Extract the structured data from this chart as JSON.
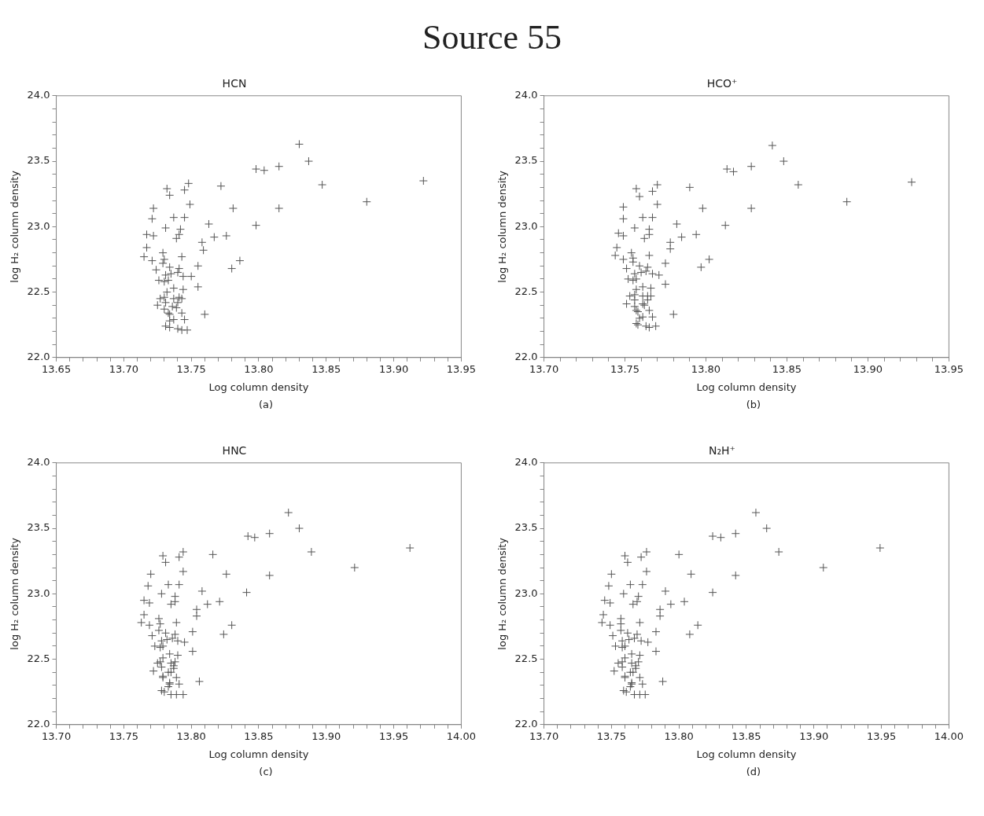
{
  "chart_data": [
    {
      "type": "scatter",
      "title": "HCN",
      "xlabel": "Log column density",
      "ylabel": "log H₂ column density",
      "annotations": [
        "Source 55",
        "(a)"
      ],
      "color": "#555555",
      "marker": "cross",
      "grid": false,
      "legend": false,
      "xlim": [
        13.65,
        13.95
      ],
      "ylim": [
        22,
        24
      ],
      "xticks": [
        {
          "value": 13.65,
          "label": "13.65"
        },
        {
          "value": 13.66,
          "label": null
        },
        {
          "value": 13.67,
          "label": null
        },
        {
          "value": 13.68,
          "label": null
        },
        {
          "value": 13.69,
          "label": null
        },
        {
          "value": 13.7,
          "label": "13.70"
        },
        {
          "value": 13.71,
          "label": null
        },
        {
          "value": 13.72,
          "label": null
        },
        {
          "value": 13.73,
          "label": null
        },
        {
          "value": 13.74,
          "label": null
        },
        {
          "value": 13.75,
          "label": "13.75"
        },
        {
          "value": 13.76,
          "label": null
        },
        {
          "value": 13.77,
          "label": null
        },
        {
          "value": 13.78,
          "label": null
        },
        {
          "value": 13.79,
          "label": null
        },
        {
          "value": 13.8,
          "label": "13.80"
        },
        {
          "value": 13.81,
          "label": null
        },
        {
          "value": 13.82,
          "label": null
        },
        {
          "value": 13.83,
          "label": null
        },
        {
          "value": 13.84,
          "label": null
        },
        {
          "value": 13.85,
          "label": "13.85"
        },
        {
          "value": 13.86,
          "label": null
        },
        {
          "value": 13.87,
          "label": null
        },
        {
          "value": 13.88,
          "label": null
        },
        {
          "value": 13.89,
          "label": null
        },
        {
          "value": 13.9,
          "label": "13.90"
        },
        {
          "value": 13.91,
          "label": null
        },
        {
          "value": 13.92,
          "label": null
        },
        {
          "value": 13.93,
          "label": null
        },
        {
          "value": 13.94,
          "label": null
        },
        {
          "value": 13.95,
          "label": "13.95"
        }
      ],
      "yticks": [
        {
          "value": 22,
          "label": "22.0"
        },
        {
          "value": 22.1,
          "label": null
        },
        {
          "value": 22.2,
          "label": null
        },
        {
          "value": 22.3,
          "label": null
        },
        {
          "value": 22.4,
          "label": null
        },
        {
          "value": 22.5,
          "label": "22.5"
        },
        {
          "value": 22.6,
          "label": null
        },
        {
          "value": 22.7,
          "label": null
        },
        {
          "value": 22.8,
          "label": null
        },
        {
          "value": 22.9,
          "label": null
        },
        {
          "value": 23,
          "label": "23.0"
        },
        {
          "value": 23.1,
          "label": null
        },
        {
          "value": 23.2,
          "label": null
        },
        {
          "value": 23.3,
          "label": null
        },
        {
          "value": 23.4,
          "label": null
        },
        {
          "value": 23.5,
          "label": "23.5"
        },
        {
          "value": 23.6,
          "label": null
        },
        {
          "value": 23.7,
          "label": null
        },
        {
          "value": 23.8,
          "label": null
        },
        {
          "value": 23.9,
          "label": null
        },
        {
          "value": 24,
          "label": "24.0"
        }
      ],
      "x": [
        13.83,
        13.837,
        13.815,
        13.798,
        13.804,
        13.847,
        13.922,
        13.88,
        13.815,
        13.798,
        13.781,
        13.772,
        13.748,
        13.732,
        13.745,
        13.734,
        13.749,
        13.722,
        13.721,
        13.737,
        13.745,
        13.763,
        13.731,
        13.742,
        13.717,
        13.722,
        13.741,
        13.739,
        13.767,
        13.776,
        13.758,
        13.759,
        13.717,
        13.715,
        13.721,
        13.729,
        13.73,
        13.743,
        13.786,
        13.78,
        13.755,
        13.729,
        13.734,
        13.724,
        13.741,
        13.731,
        13.735,
        13.74,
        13.744,
        13.75,
        13.726,
        13.73,
        13.733,
        13.755,
        13.737,
        13.744,
        13.732,
        13.727,
        13.73,
        13.737,
        13.741,
        13.743,
        13.731,
        13.74,
        13.725,
        13.736,
        13.739,
        13.73,
        13.733,
        13.743,
        13.734,
        13.76,
        13.737,
        13.745,
        13.734,
        13.731,
        13.734,
        13.74,
        13.743,
        13.747
      ],
      "values": [
        23.63,
        23.5,
        23.46,
        23.44,
        23.43,
        23.32,
        23.35,
        23.19,
        23.14,
        23.01,
        23.14,
        23.31,
        23.33,
        23.29,
        23.28,
        23.24,
        23.17,
        23.14,
        23.06,
        23.07,
        23.07,
        23.02,
        22.99,
        22.98,
        22.94,
        22.93,
        22.94,
        22.91,
        22.92,
        22.93,
        22.88,
        22.82,
        22.84,
        22.77,
        22.74,
        22.8,
        22.75,
        22.77,
        22.74,
        22.68,
        22.7,
        22.72,
        22.69,
        22.67,
        22.68,
        22.63,
        22.64,
        22.65,
        22.62,
        22.62,
        22.59,
        22.58,
        22.59,
        22.54,
        22.53,
        22.52,
        22.5,
        22.45,
        22.46,
        22.45,
        22.46,
        22.45,
        22.42,
        22.42,
        22.4,
        22.39,
        22.38,
        22.37,
        22.34,
        22.34,
        22.33,
        22.33,
        22.29,
        22.29,
        22.28,
        22.24,
        22.23,
        22.22,
        22.21,
        22.21
      ]
    },
    {
      "type": "scatter",
      "title": "HCO⁺",
      "xlabel": "Log column density",
      "ylabel": "log H₂ column density",
      "annotations": [
        "(b)"
      ],
      "color": "#555555",
      "marker": "cross",
      "grid": false,
      "legend": false,
      "xlim": [
        13.7,
        13.95
      ],
      "ylim": [
        22,
        24
      ],
      "xticks": [
        {
          "value": 13.7,
          "label": "13.70"
        },
        {
          "value": 13.71,
          "label": null
        },
        {
          "value": 13.72,
          "label": null
        },
        {
          "value": 13.73,
          "label": null
        },
        {
          "value": 13.74,
          "label": null
        },
        {
          "value": 13.75,
          "label": "13.75"
        },
        {
          "value": 13.76,
          "label": null
        },
        {
          "value": 13.77,
          "label": null
        },
        {
          "value": 13.78,
          "label": null
        },
        {
          "value": 13.79,
          "label": null
        },
        {
          "value": 13.8,
          "label": "13.80"
        },
        {
          "value": 13.81,
          "label": null
        },
        {
          "value": 13.82,
          "label": null
        },
        {
          "value": 13.83,
          "label": null
        },
        {
          "value": 13.84,
          "label": null
        },
        {
          "value": 13.85,
          "label": "13.85"
        },
        {
          "value": 13.86,
          "label": null
        },
        {
          "value": 13.87,
          "label": null
        },
        {
          "value": 13.88,
          "label": null
        },
        {
          "value": 13.89,
          "label": null
        },
        {
          "value": 13.9,
          "label": "13.90"
        },
        {
          "value": 13.91,
          "label": null
        },
        {
          "value": 13.92,
          "label": null
        },
        {
          "value": 13.93,
          "label": null
        },
        {
          "value": 13.94,
          "label": null
        },
        {
          "value": 13.95,
          "label": "13.95"
        }
      ],
      "yticks": [
        {
          "value": 22,
          "label": "22.0"
        },
        {
          "value": 22.1,
          "label": null
        },
        {
          "value": 22.2,
          "label": null
        },
        {
          "value": 22.3,
          "label": null
        },
        {
          "value": 22.4,
          "label": null
        },
        {
          "value": 22.5,
          "label": "22.5"
        },
        {
          "value": 22.6,
          "label": null
        },
        {
          "value": 22.7,
          "label": null
        },
        {
          "value": 22.8,
          "label": null
        },
        {
          "value": 22.9,
          "label": null
        },
        {
          "value": 23,
          "label": "23.0"
        },
        {
          "value": 23.1,
          "label": null
        },
        {
          "value": 23.2,
          "label": null
        },
        {
          "value": 23.3,
          "label": null
        },
        {
          "value": 23.4,
          "label": null
        },
        {
          "value": 23.5,
          "label": "23.5"
        },
        {
          "value": 23.6,
          "label": null
        },
        {
          "value": 23.7,
          "label": null
        },
        {
          "value": 23.8,
          "label": null
        },
        {
          "value": 23.9,
          "label": null
        },
        {
          "value": 24,
          "label": "24.0"
        }
      ],
      "x": [
        13.841,
        13.848,
        13.828,
        13.813,
        13.817,
        13.857,
        13.927,
        13.887,
        13.828,
        13.812,
        13.798,
        13.79,
        13.77,
        13.757,
        13.767,
        13.759,
        13.77,
        13.749,
        13.749,
        13.761,
        13.767,
        13.782,
        13.756,
        13.765,
        13.746,
        13.749,
        13.765,
        13.762,
        13.785,
        13.794,
        13.778,
        13.778,
        13.745,
        13.744,
        13.749,
        13.754,
        13.755,
        13.765,
        13.802,
        13.797,
        13.775,
        13.755,
        13.759,
        13.751,
        13.764,
        13.756,
        13.76,
        13.763,
        13.767,
        13.771,
        13.752,
        13.755,
        13.757,
        13.775,
        13.761,
        13.766,
        13.757,
        13.753,
        13.756,
        13.761,
        13.764,
        13.766,
        13.756,
        13.764,
        13.751,
        13.761,
        13.762,
        13.756,
        13.757,
        13.765,
        13.758,
        13.78,
        13.761,
        13.767,
        13.759,
        13.757,
        13.758,
        13.763,
        13.765,
        13.769
      ],
      "values": [
        23.62,
        23.5,
        23.46,
        23.44,
        23.42,
        23.32,
        23.34,
        23.19,
        23.14,
        23.01,
        23.14,
        23.3,
        23.32,
        23.29,
        23.27,
        23.23,
        23.17,
        23.15,
        23.06,
        23.07,
        23.07,
        23.02,
        22.99,
        22.98,
        22.95,
        22.93,
        22.94,
        22.91,
        22.92,
        22.94,
        22.88,
        22.83,
        22.84,
        22.78,
        22.75,
        22.8,
        22.76,
        22.78,
        22.75,
        22.69,
        22.72,
        22.73,
        22.7,
        22.68,
        22.69,
        22.64,
        22.65,
        22.66,
        22.64,
        22.63,
        22.6,
        22.59,
        22.6,
        22.56,
        22.54,
        22.53,
        22.52,
        22.47,
        22.48,
        22.47,
        22.47,
        22.47,
        22.44,
        22.44,
        22.41,
        22.41,
        22.4,
        22.39,
        22.36,
        22.36,
        22.35,
        22.33,
        22.31,
        22.31,
        22.3,
        22.26,
        22.25,
        22.24,
        22.23,
        22.24
      ]
    },
    {
      "type": "scatter",
      "title": "HNC",
      "xlabel": "Log column density",
      "ylabel": "log H₂ column density",
      "annotations": [
        "(c)"
      ],
      "color": "#555555",
      "marker": "cross",
      "grid": false,
      "legend": false,
      "xlim": [
        13.7,
        14
      ],
      "ylim": [
        22,
        24
      ],
      "xticks": [
        {
          "value": 13.7,
          "label": "13.70"
        },
        {
          "value": 13.71,
          "label": null
        },
        {
          "value": 13.72,
          "label": null
        },
        {
          "value": 13.73,
          "label": null
        },
        {
          "value": 13.74,
          "label": null
        },
        {
          "value": 13.75,
          "label": "13.75"
        },
        {
          "value": 13.76,
          "label": null
        },
        {
          "value": 13.77,
          "label": null
        },
        {
          "value": 13.78,
          "label": null
        },
        {
          "value": 13.79,
          "label": null
        },
        {
          "value": 13.8,
          "label": "13.80"
        },
        {
          "value": 13.81,
          "label": null
        },
        {
          "value": 13.82,
          "label": null
        },
        {
          "value": 13.83,
          "label": null
        },
        {
          "value": 13.84,
          "label": null
        },
        {
          "value": 13.85,
          "label": "13.85"
        },
        {
          "value": 13.86,
          "label": null
        },
        {
          "value": 13.87,
          "label": null
        },
        {
          "value": 13.88,
          "label": null
        },
        {
          "value": 13.89,
          "label": null
        },
        {
          "value": 13.9,
          "label": "13.90"
        },
        {
          "value": 13.91,
          "label": null
        },
        {
          "value": 13.92,
          "label": null
        },
        {
          "value": 13.93,
          "label": null
        },
        {
          "value": 13.94,
          "label": null
        },
        {
          "value": 13.95,
          "label": "13.95"
        },
        {
          "value": 13.96,
          "label": null
        },
        {
          "value": 13.97,
          "label": null
        },
        {
          "value": 13.98,
          "label": null
        },
        {
          "value": 13.99,
          "label": null
        },
        {
          "value": 14,
          "label": "14.00"
        }
      ],
      "yticks": [
        {
          "value": 22,
          "label": "22.0"
        },
        {
          "value": 22.1,
          "label": null
        },
        {
          "value": 22.2,
          "label": null
        },
        {
          "value": 22.3,
          "label": null
        },
        {
          "value": 22.4,
          "label": null
        },
        {
          "value": 22.5,
          "label": "22.5"
        },
        {
          "value": 22.6,
          "label": null
        },
        {
          "value": 22.7,
          "label": null
        },
        {
          "value": 22.8,
          "label": null
        },
        {
          "value": 22.9,
          "label": null
        },
        {
          "value": 23,
          "label": "23.0"
        },
        {
          "value": 23.1,
          "label": null
        },
        {
          "value": 23.2,
          "label": null
        },
        {
          "value": 23.3,
          "label": null
        },
        {
          "value": 23.4,
          "label": null
        },
        {
          "value": 23.5,
          "label": "23.5"
        },
        {
          "value": 23.6,
          "label": null
        },
        {
          "value": 23.7,
          "label": null
        },
        {
          "value": 23.8,
          "label": null
        },
        {
          "value": 23.9,
          "label": null
        },
        {
          "value": 24,
          "label": "24.0"
        }
      ],
      "x": [
        13.872,
        13.88,
        13.858,
        13.842,
        13.847,
        13.889,
        13.962,
        13.921,
        13.858,
        13.841,
        13.826,
        13.816,
        13.794,
        13.779,
        13.791,
        13.781,
        13.794,
        13.77,
        13.768,
        13.783,
        13.791,
        13.808,
        13.778,
        13.788,
        13.765,
        13.769,
        13.788,
        13.785,
        13.812,
        13.821,
        13.804,
        13.804,
        13.765,
        13.763,
        13.769,
        13.776,
        13.777,
        13.789,
        13.83,
        13.824,
        13.801,
        13.776,
        13.781,
        13.771,
        13.788,
        13.778,
        13.782,
        13.786,
        13.79,
        13.795,
        13.773,
        13.777,
        13.779,
        13.801,
        13.784,
        13.79,
        13.779,
        13.775,
        13.777,
        13.785,
        13.788,
        13.787,
        13.778,
        13.787,
        13.772,
        13.783,
        13.785,
        13.779,
        13.779,
        13.789,
        13.784,
        13.806,
        13.784,
        13.791,
        13.783,
        13.778,
        13.78,
        13.785,
        13.789,
        13.794
      ],
      "values": [
        23.62,
        23.5,
        23.46,
        23.44,
        23.43,
        23.32,
        23.35,
        23.2,
        23.14,
        23.01,
        23.15,
        23.3,
        23.32,
        23.29,
        23.28,
        23.24,
        23.17,
        23.15,
        23.06,
        23.07,
        23.07,
        23.02,
        23.0,
        22.98,
        22.95,
        22.93,
        22.94,
        22.92,
        22.92,
        22.94,
        22.88,
        22.83,
        22.84,
        22.78,
        22.76,
        22.81,
        22.77,
        22.78,
        22.76,
        22.69,
        22.71,
        22.72,
        22.7,
        22.68,
        22.69,
        22.64,
        22.65,
        22.66,
        22.64,
        22.63,
        22.6,
        22.59,
        22.6,
        22.56,
        22.54,
        22.53,
        22.51,
        22.47,
        22.48,
        22.47,
        22.48,
        22.45,
        22.44,
        22.43,
        22.41,
        22.4,
        22.4,
        22.37,
        22.36,
        22.36,
        22.32,
        22.33,
        22.31,
        22.31,
        22.29,
        22.26,
        22.25,
        22.23,
        22.23,
        22.23
      ]
    },
    {
      "type": "scatter",
      "title": "N₂H⁺",
      "xlabel": "Log column density",
      "ylabel": "log H₂ column density",
      "annotations": [
        "(d)"
      ],
      "color": "#555555",
      "marker": "cross",
      "grid": false,
      "legend": false,
      "xlim": [
        13.7,
        14
      ],
      "ylim": [
        22,
        24
      ],
      "xticks": [
        {
          "value": 13.7,
          "label": "13.70"
        },
        {
          "value": 13.71,
          "label": null
        },
        {
          "value": 13.72,
          "label": null
        },
        {
          "value": 13.73,
          "label": null
        },
        {
          "value": 13.74,
          "label": null
        },
        {
          "value": 13.75,
          "label": "13.75"
        },
        {
          "value": 13.76,
          "label": null
        },
        {
          "value": 13.77,
          "label": null
        },
        {
          "value": 13.78,
          "label": null
        },
        {
          "value": 13.79,
          "label": null
        },
        {
          "value": 13.8,
          "label": "13.80"
        },
        {
          "value": 13.81,
          "label": null
        },
        {
          "value": 13.82,
          "label": null
        },
        {
          "value": 13.83,
          "label": null
        },
        {
          "value": 13.84,
          "label": null
        },
        {
          "value": 13.85,
          "label": "13.85"
        },
        {
          "value": 13.86,
          "label": null
        },
        {
          "value": 13.87,
          "label": null
        },
        {
          "value": 13.88,
          "label": null
        },
        {
          "value": 13.89,
          "label": null
        },
        {
          "value": 13.9,
          "label": "13.90"
        },
        {
          "value": 13.91,
          "label": null
        },
        {
          "value": 13.92,
          "label": null
        },
        {
          "value": 13.93,
          "label": null
        },
        {
          "value": 13.94,
          "label": null
        },
        {
          "value": 13.95,
          "label": "13.95"
        },
        {
          "value": 13.96,
          "label": null
        },
        {
          "value": 13.97,
          "label": null
        },
        {
          "value": 13.98,
          "label": null
        },
        {
          "value": 13.99,
          "label": null
        },
        {
          "value": 14,
          "label": "14.00"
        }
      ],
      "yticks": [
        {
          "value": 22,
          "label": "22.0"
        },
        {
          "value": 22.1,
          "label": null
        },
        {
          "value": 22.2,
          "label": null
        },
        {
          "value": 22.3,
          "label": null
        },
        {
          "value": 22.4,
          "label": null
        },
        {
          "value": 22.5,
          "label": "22.5"
        },
        {
          "value": 22.6,
          "label": null
        },
        {
          "value": 22.7,
          "label": null
        },
        {
          "value": 22.8,
          "label": null
        },
        {
          "value": 22.9,
          "label": null
        },
        {
          "value": 23,
          "label": "23.0"
        },
        {
          "value": 23.1,
          "label": null
        },
        {
          "value": 23.2,
          "label": null
        },
        {
          "value": 23.3,
          "label": null
        },
        {
          "value": 23.4,
          "label": null
        },
        {
          "value": 23.5,
          "label": "23.5"
        },
        {
          "value": 23.6,
          "label": null
        },
        {
          "value": 23.7,
          "label": null
        },
        {
          "value": 23.8,
          "label": null
        },
        {
          "value": 23.9,
          "label": null
        },
        {
          "value": 24,
          "label": "24.0"
        }
      ],
      "x": [
        13.857,
        13.865,
        13.842,
        13.825,
        13.831,
        13.874,
        13.949,
        13.907,
        13.842,
        13.825,
        13.809,
        13.8,
        13.776,
        13.76,
        13.772,
        13.762,
        13.776,
        13.75,
        13.748,
        13.764,
        13.773,
        13.79,
        13.759,
        13.77,
        13.745,
        13.749,
        13.769,
        13.766,
        13.794,
        13.804,
        13.786,
        13.786,
        13.744,
        13.743,
        13.749,
        13.757,
        13.757,
        13.771,
        13.814,
        13.808,
        13.783,
        13.757,
        13.762,
        13.751,
        13.769,
        13.758,
        13.763,
        13.767,
        13.772,
        13.777,
        13.753,
        13.758,
        13.76,
        13.783,
        13.765,
        13.771,
        13.76,
        13.755,
        13.758,
        13.765,
        13.77,
        13.768,
        13.758,
        13.768,
        13.752,
        13.764,
        13.766,
        13.76,
        13.76,
        13.771,
        13.765,
        13.788,
        13.765,
        13.773,
        13.764,
        13.759,
        13.761,
        13.767,
        13.771,
        13.775
      ],
      "values": [
        23.62,
        23.5,
        23.46,
        23.44,
        23.43,
        23.32,
        23.35,
        23.2,
        23.14,
        23.01,
        23.15,
        23.3,
        23.32,
        23.29,
        23.28,
        23.24,
        23.17,
        23.15,
        23.06,
        23.07,
        23.07,
        23.02,
        23.0,
        22.98,
        22.95,
        22.93,
        22.94,
        22.92,
        22.92,
        22.94,
        22.88,
        22.83,
        22.84,
        22.78,
        22.76,
        22.81,
        22.77,
        22.78,
        22.76,
        22.69,
        22.71,
        22.72,
        22.7,
        22.68,
        22.69,
        22.64,
        22.65,
        22.66,
        22.64,
        22.63,
        22.6,
        22.59,
        22.6,
        22.56,
        22.54,
        22.53,
        22.51,
        22.47,
        22.48,
        22.47,
        22.48,
        22.45,
        22.44,
        22.43,
        22.41,
        22.4,
        22.4,
        22.37,
        22.36,
        22.36,
        22.32,
        22.33,
        22.31,
        22.31,
        22.29,
        22.26,
        22.25,
        22.23,
        22.23,
        22.23
      ]
    }
  ]
}
